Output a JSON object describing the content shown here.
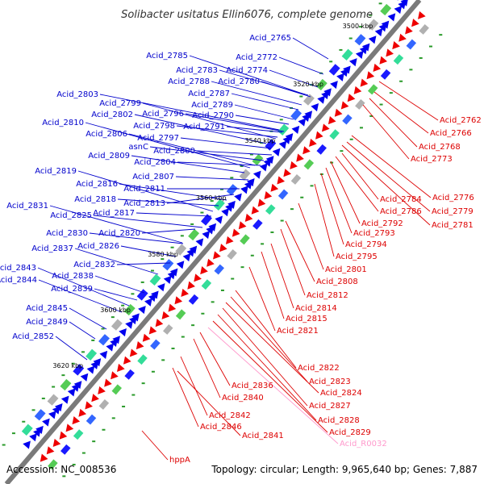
{
  "title": "Solibacter usitatus Ellin6076, complete genome",
  "footer": {
    "accession": "Accession: NC_008536",
    "summary": "Topology: circular; Length: 9,965,640 bp; Genes: 7,887"
  },
  "colors": {
    "backbone": "#7a7a7a",
    "forward_label": "#0000cc",
    "reverse_label": "#dd0000",
    "rna_label": "#ff99cc",
    "forward_gene": "#0000ee",
    "reverse_gene": "#ee0000",
    "tick": "#2a9a2a"
  },
  "scale_marks": [
    "3500 kbp",
    "3520 kbp",
    "3540 kbp",
    "3560 kbp",
    "3580 kbp",
    "3600 kbp",
    "3620 kbp"
  ],
  "forward_genes": [
    "Acid_2765",
    "Acid_2772",
    "Acid_2785",
    "Acid_2774",
    "Acid_2783",
    "Acid_2788",
    "Acid_2780",
    "Acid_2787",
    "Acid_2803",
    "Acid_2789",
    "Acid_2799",
    "Acid_2790",
    "Acid_2802",
    "Acid_2796",
    "Acid_2798",
    "Acid_2791",
    "Acid_2810",
    "Acid_2806",
    "asnC",
    "Acid_2797",
    "Acid_2800",
    "Acid_2809",
    "Acid_2804",
    "Acid_2807",
    "Acid_2819",
    "Acid_2811",
    "Acid_2816",
    "Acid_2818",
    "Acid_2813",
    "Acid_2831",
    "Acid_2825",
    "Acid_2817",
    "Acid_2830",
    "Acid_2820",
    "Acid_2837",
    "Acid_2826",
    "Acid_2832",
    "Acid_2843",
    "Acid_2838",
    "Acid_2844",
    "Acid_2839",
    "Acid_2845",
    "Acid_2849",
    "Acid_2852"
  ],
  "reverse_genes": [
    "Acid_2762",
    "Acid_2766",
    "Acid_2768",
    "Acid_2773",
    "Acid_2776",
    "Acid_2784",
    "Acid_2779",
    "Acid_2786",
    "Acid_2781",
    "Acid_2792",
    "Acid_2793",
    "Acid_2794",
    "Acid_2795",
    "Acid_2801",
    "Acid_2808",
    "Acid_2812",
    "Acid_2814",
    "Acid_2815",
    "Acid_2821",
    "Acid_2822",
    "Acid_2823",
    "Acid_2836",
    "Acid_2824",
    "Acid_2840",
    "Acid_2827",
    "Acid_2842",
    "Acid_2828",
    "Acid_2846",
    "Acid_2829",
    "Acid_2841",
    "Acid_R0032",
    "hppA"
  ]
}
